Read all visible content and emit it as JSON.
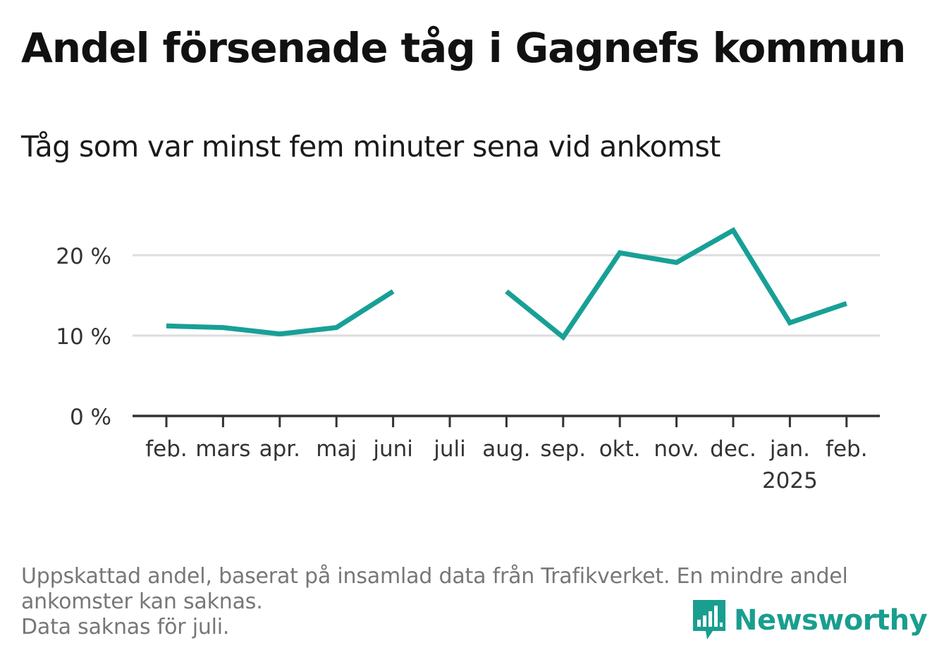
{
  "header": {
    "title": "Andel försenade tåg i Gagnefs kommun",
    "subtitle": "Tåg som var minst fem minuter sena vid ankomst"
  },
  "footnote": {
    "line1": "Uppskattad andel, baserat på insamlad data från Trafikverket. En mindre andel",
    "line2": "ankomster kan saknas.",
    "line3": "Data saknas för juli."
  },
  "brand": {
    "name": "Newsworthy",
    "logo_icon": "bar-chart-logo-icon",
    "color": "#1a9e8f"
  },
  "colors": {
    "line": "#18a096",
    "axis": "#333333",
    "grid": "#dddddd",
    "tick_text": "#333333"
  },
  "chart_data": {
    "type": "line",
    "categories": [
      "feb.",
      "mars",
      "apr.",
      "maj",
      "juni",
      "juli",
      "aug.",
      "sep.",
      "okt.",
      "nov.",
      "dec.",
      "jan.",
      "feb."
    ],
    "year_labels": [
      "",
      "",
      "",
      "",
      "",
      "",
      "",
      "",
      "",
      "",
      "",
      "2025",
      ""
    ],
    "series": [
      {
        "values": [
          11.2,
          11.0,
          10.2,
          11.0,
          15.5,
          null,
          15.5,
          9.8,
          20.3,
          19.1,
          23.1,
          11.6,
          14.0
        ]
      }
    ],
    "ylim": [
      0,
      25
    ],
    "yticks": [
      0,
      10,
      20
    ],
    "ytick_labels": [
      "0 %",
      "10 %",
      "20 %"
    ],
    "grid": true,
    "xlabel": "",
    "ylabel": ""
  }
}
